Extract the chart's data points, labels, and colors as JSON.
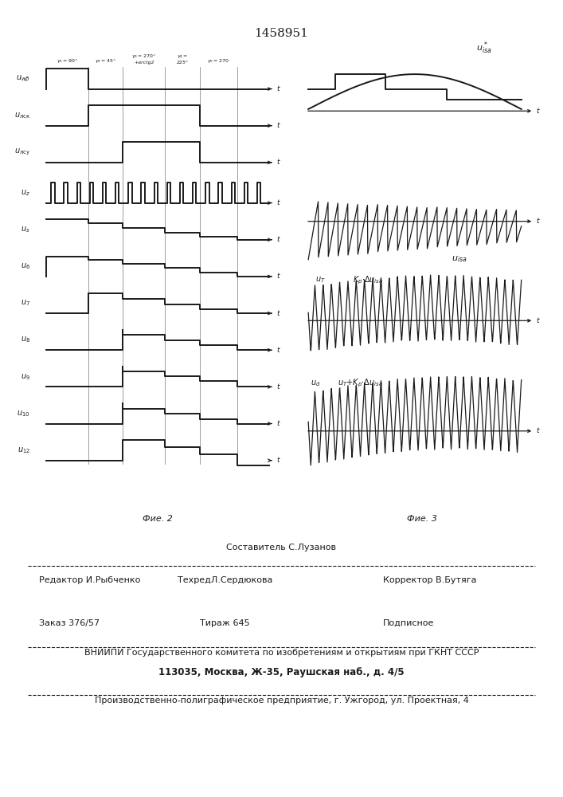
{
  "title": "1458951",
  "fig2_label": "Фие. 2",
  "fig3_label": "Фие. 3",
  "bottom_text1": "Составитель С.Лузанов",
  "bottom_text2": "Редактор И.Рыбченко",
  "bottom_text3": "ТехредЛ.Сердюкова",
  "bottom_text4": "Корректор В.Бутяга",
  "bottom_text5": "Заказ 376/57",
  "bottom_text6": "Тираж 645",
  "bottom_text7": "Подписное",
  "bottom_text8": "ВНИИПИ Государственного комитета по изобретениям и открытиям при ГКНТ СССР",
  "bottom_text9": "113035, Москва, Ж-35, Раушская наб., д. 4/5",
  "bottom_text10": "Производственно-полиграфическое предприятие, г. Ужгород, ул. Проектная, 4",
  "background": "#ffffff",
  "ink_color": "#1a1a1a"
}
